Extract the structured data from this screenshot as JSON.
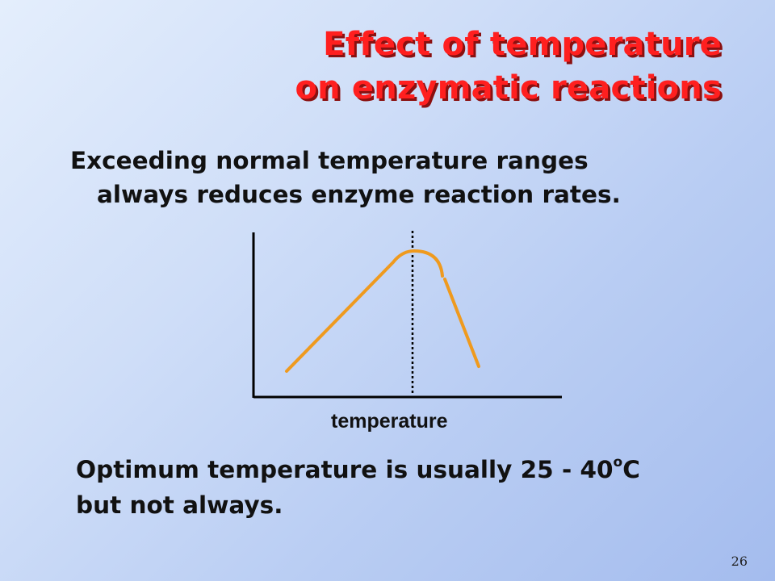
{
  "slide": {
    "title_line1": "Effect of temperature",
    "title_line2": "on enzymatic reactions",
    "statement_line1": "Exceeding normal temperature ranges",
    "statement_line2": "always reduces enzyme reaction rates.",
    "x_axis_label": "temperature",
    "optimum_text_before": "Optimum temperature is usually 25 - 40",
    "optimum_superscript": "o",
    "optimum_text_after": "C",
    "optimum_line2": "but not always.",
    "page_number": "26"
  },
  "colors": {
    "title": "#ff1f1f",
    "curve": "#ef9a1e",
    "axis": "#000000"
  }
}
